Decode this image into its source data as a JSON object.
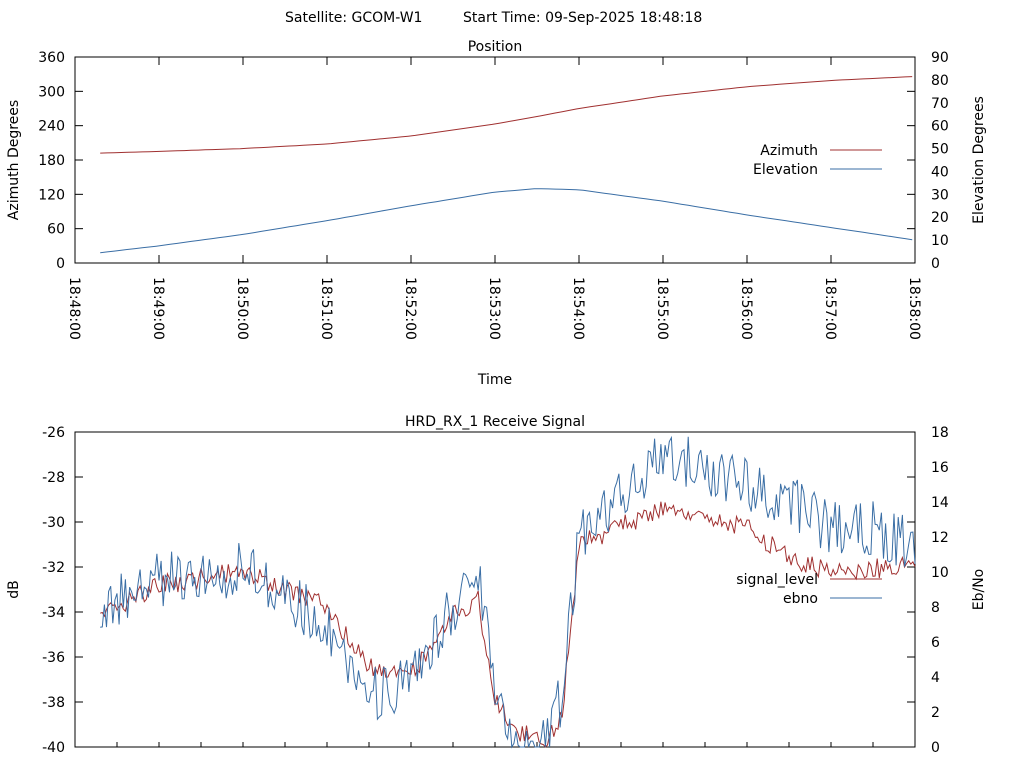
{
  "header": {
    "satellite_label": "Satellite: GCOM-W1",
    "start_label": "Start Time: 09-Sep-2025 18:48:18"
  },
  "chart_data": [
    {
      "type": "line",
      "title": "Position",
      "xlabel": "Time",
      "ylabel": "Azimuth Degrees",
      "y2label": "Elevation Degrees",
      "xlim": [
        "18:48:00",
        "18:58:00"
      ],
      "ylim": [
        0,
        360
      ],
      "y2lim": [
        0,
        90
      ],
      "xticks": [
        "18:48:00",
        "18:49:00",
        "18:50:00",
        "18:51:00",
        "18:52:00",
        "18:53:00",
        "18:54:00",
        "18:55:00",
        "18:56:00",
        "18:57:00",
        "18:58:00"
      ],
      "yticks": [
        "0",
        "60",
        "120",
        "180",
        "240",
        "300",
        "360"
      ],
      "y2ticks": [
        "0",
        "10",
        "20",
        "30",
        "40",
        "50",
        "60",
        "70",
        "80",
        "90"
      ],
      "legend_position": "right",
      "series": [
        {
          "name": "Azimuth",
          "axis": "y",
          "color": "#a03030",
          "x": [
            "18:48:18",
            "18:49:00",
            "18:50:00",
            "18:51:00",
            "18:52:00",
            "18:53:00",
            "18:53:30",
            "18:54:00",
            "18:55:00",
            "18:56:00",
            "18:57:00",
            "18:58:00"
          ],
          "y": [
            192,
            195,
            200,
            208,
            222,
            243,
            256,
            270,
            292,
            308,
            319,
            326
          ]
        },
        {
          "name": "Elevation",
          "axis": "y2",
          "color": "#3a6ea5",
          "x": [
            "18:48:18",
            "18:49:00",
            "18:50:00",
            "18:51:00",
            "18:52:00",
            "18:53:00",
            "18:53:30",
            "18:54:00",
            "18:55:00",
            "18:56:00",
            "18:57:00",
            "18:58:00"
          ],
          "y": [
            4.5,
            7.5,
            12.5,
            18.5,
            25,
            31,
            32.5,
            32,
            27,
            21,
            15.5,
            10
          ]
        }
      ]
    },
    {
      "type": "line",
      "title": "HRD_RX_1 Receive Signal",
      "ylabel": "dB",
      "y2label": "Eb/No",
      "ylim": [
        -40,
        -26
      ],
      "y2lim": [
        0,
        18
      ],
      "yticks": [
        "-40",
        "-38",
        "-36",
        "-34",
        "-32",
        "-30",
        "-28",
        "-26"
      ],
      "y2ticks": [
        "0",
        "2",
        "4",
        "6",
        "8",
        "10",
        "12",
        "14",
        "16",
        "18"
      ],
      "legend_position": "right",
      "series": [
        {
          "name": "signal_level",
          "axis": "y",
          "color": "#a03030",
          "x": [
            "18:48:18",
            "18:49:00",
            "18:50:00",
            "18:51:00",
            "18:51:30",
            "18:52:00",
            "18:52:30",
            "18:52:48",
            "18:53:00",
            "18:53:12",
            "18:53:24",
            "18:53:36",
            "18:53:48",
            "18:54:00",
            "18:55:00",
            "18:55:30",
            "18:56:00",
            "18:56:30",
            "18:57:00",
            "18:57:30",
            "18:58:00"
          ],
          "y": [
            -34.3,
            -32.8,
            -32.2,
            -33.8,
            -36.5,
            -36.8,
            -34.2,
            -33.5,
            -37.8,
            -39.2,
            -39.5,
            -40.0,
            -38.5,
            -31.0,
            -29.4,
            -29.8,
            -30.3,
            -31.5,
            -32.3,
            -32.1,
            -31.8
          ]
        },
        {
          "name": "ebno",
          "axis": "y2",
          "color": "#3a6ea5",
          "x": [
            "18:48:18",
            "18:49:00",
            "18:50:00",
            "18:51:00",
            "18:51:30",
            "18:52:00",
            "18:52:30",
            "18:52:48",
            "18:53:00",
            "18:53:12",
            "18:53:24",
            "18:53:36",
            "18:53:48",
            "18:54:00",
            "18:55:00",
            "18:55:30",
            "18:56:00",
            "18:56:30",
            "18:57:00",
            "18:57:30",
            "18:58:00"
          ],
          "y": [
            8.0,
            9.5,
            10.2,
            7.0,
            3.0,
            3.5,
            8.0,
            10.0,
            4.0,
            0.5,
            0.0,
            0.0,
            3.0,
            12.0,
            16.5,
            16.0,
            15.0,
            14.2,
            12.5,
            12.5,
            11.5
          ]
        }
      ]
    }
  ]
}
